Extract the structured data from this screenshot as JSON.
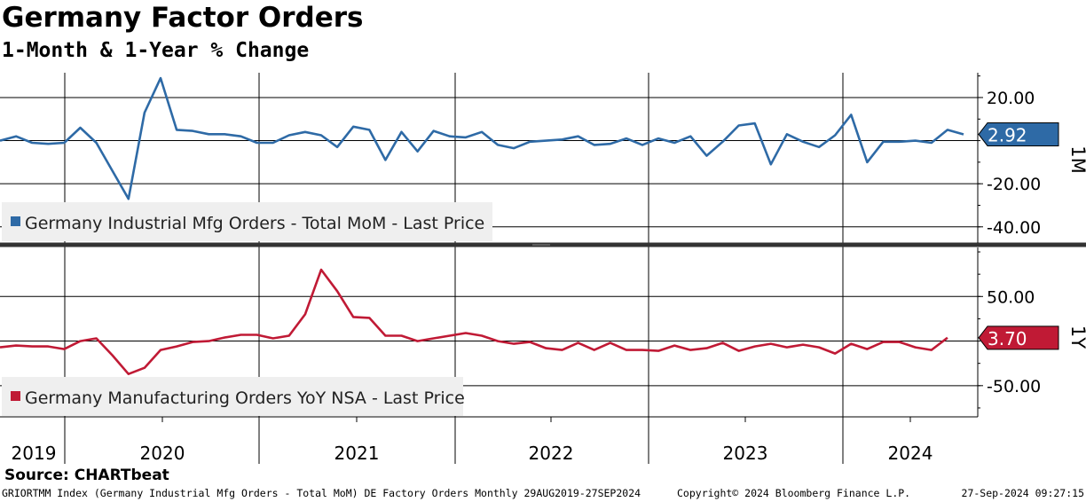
{
  "title": "Germany Factor Orders",
  "subtitle": "1-Month & 1-Year % Change",
  "source": "Source: CHARTbeat",
  "footer": {
    "left": "GRIORTMM Index (Germany Industrial Mfg Orders - Total MoM) DE Factory Orders  Monthly 29AUG2019-27SEP2024",
    "middle": "Copyright© 2024 Bloomberg Finance L.P.",
    "right": "27-Sep-2024 09:27:15"
  },
  "colors": {
    "mom": "#2e6aa6",
    "yoy": "#c01a35",
    "grid": "#000000",
    "legend_bg": "#efefef"
  },
  "chart_data": [
    {
      "type": "line",
      "panel_label": "1M",
      "series": [
        {
          "name": "Germany Industrial Mfg Orders - Total MoM - Last Price",
          "last_value": "2.92",
          "values": [
            0,
            2,
            -1,
            -1.5,
            -1,
            6,
            -1,
            -14,
            -27,
            13,
            29,
            5,
            4.5,
            3,
            3,
            2,
            -1,
            -1,
            2.5,
            4,
            2.5,
            -3,
            6.5,
            5,
            -9,
            4,
            -5,
            4.5,
            2,
            1.5,
            4,
            -2,
            -3.5,
            -0.5,
            0,
            0.5,
            2,
            -2,
            -1.5,
            1,
            -2,
            1,
            -1,
            2,
            -7,
            -0.5,
            7,
            8,
            -11,
            3,
            -0.5,
            -3,
            2.5,
            12,
            -10,
            -0.5,
            -0.5,
            0,
            -1,
            5,
            2.92
          ]
        }
      ],
      "x_labels": [
        "2019",
        "2020",
        "2021",
        "2022",
        "2023",
        "2024"
      ],
      "y_ticks": [
        "20.00",
        "-20.00",
        "-40.00"
      ],
      "y_tick_values": [
        20,
        -20,
        -40
      ],
      "ylim": [
        -47.5,
        31.5
      ]
    },
    {
      "type": "line",
      "panel_label": "1Y",
      "series": [
        {
          "name": "Germany Manufacturing Orders YoY NSA - Last Price",
          "last_value": "3.70",
          "values": [
            -7,
            -5,
            -6,
            -6,
            -9,
            0,
            3,
            -16,
            -37,
            -30,
            -10,
            -6,
            -1,
            0,
            4,
            7,
            7,
            3,
            6,
            30,
            80,
            56,
            27,
            26,
            6,
            6,
            0,
            3,
            6,
            9,
            6,
            0,
            -3,
            -1,
            -8,
            -10,
            -2,
            -10,
            -2,
            -10,
            -10,
            -11,
            -5,
            -10,
            -8,
            -2,
            -11,
            -6,
            -3,
            -7,
            -4,
            -7,
            -14,
            -3,
            -9,
            -1,
            -1,
            -7,
            -10,
            3.7
          ]
        }
      ],
      "y_ticks": [
        "50.00",
        "-50.00"
      ],
      "y_tick_values": [
        50,
        -50
      ],
      "ylim": [
        -85,
        105
      ]
    }
  ]
}
